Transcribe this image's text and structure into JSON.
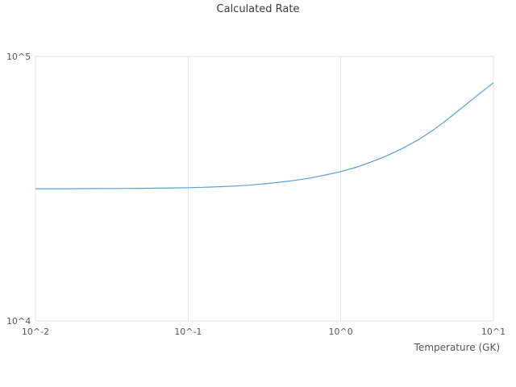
{
  "chart_data": {
    "type": "line",
    "title": "Calculated Rate",
    "xlabel": "Temperature (GK)",
    "ylabel": "",
    "x_scale": "log",
    "y_scale": "log",
    "xlim": [
      0.01,
      10
    ],
    "ylim": [
      10000,
      100000
    ],
    "grid": true,
    "legend": "none",
    "x_ticks": [
      {
        "label": "10^-2",
        "value": 0.01
      },
      {
        "label": "10^-1",
        "value": 0.1
      },
      {
        "label": "10^0",
        "value": 1
      },
      {
        "label": "10^1",
        "value": 10
      }
    ],
    "y_ticks": [
      {
        "label": "10^4",
        "value": 10000
      },
      {
        "label": "10^5",
        "value": 100000
      }
    ],
    "series": [
      {
        "name": "Calculated Rate",
        "color": "#5a9fd4",
        "points": [
          [
            0.01,
            31600
          ],
          [
            0.0126,
            31600
          ],
          [
            0.0158,
            31610
          ],
          [
            0.02,
            31620
          ],
          [
            0.025,
            31640
          ],
          [
            0.032,
            31660
          ],
          [
            0.04,
            31690
          ],
          [
            0.05,
            31720
          ],
          [
            0.063,
            31760
          ],
          [
            0.079,
            31820
          ],
          [
            0.1,
            31900
          ],
          [
            0.126,
            32010
          ],
          [
            0.158,
            32150
          ],
          [
            0.2,
            32350
          ],
          [
            0.25,
            32600
          ],
          [
            0.32,
            33000
          ],
          [
            0.4,
            33450
          ],
          [
            0.5,
            34000
          ],
          [
            0.63,
            34700
          ],
          [
            0.79,
            35600
          ],
          [
            1.0,
            36700
          ],
          [
            1.26,
            38100
          ],
          [
            1.58,
            39900
          ],
          [
            2.0,
            42100
          ],
          [
            2.5,
            44700
          ],
          [
            3.2,
            48300
          ],
          [
            4.0,
            52500
          ],
          [
            5.0,
            57800
          ],
          [
            6.3,
            64300
          ],
          [
            7.9,
            71500
          ],
          [
            10.0,
            79500
          ]
        ]
      }
    ]
  },
  "colors": {
    "line": "#5a9fd4",
    "grid": "#e5e5e5",
    "text": "#555555",
    "title_text": "#3b3b3b",
    "background": "#ffffff"
  }
}
